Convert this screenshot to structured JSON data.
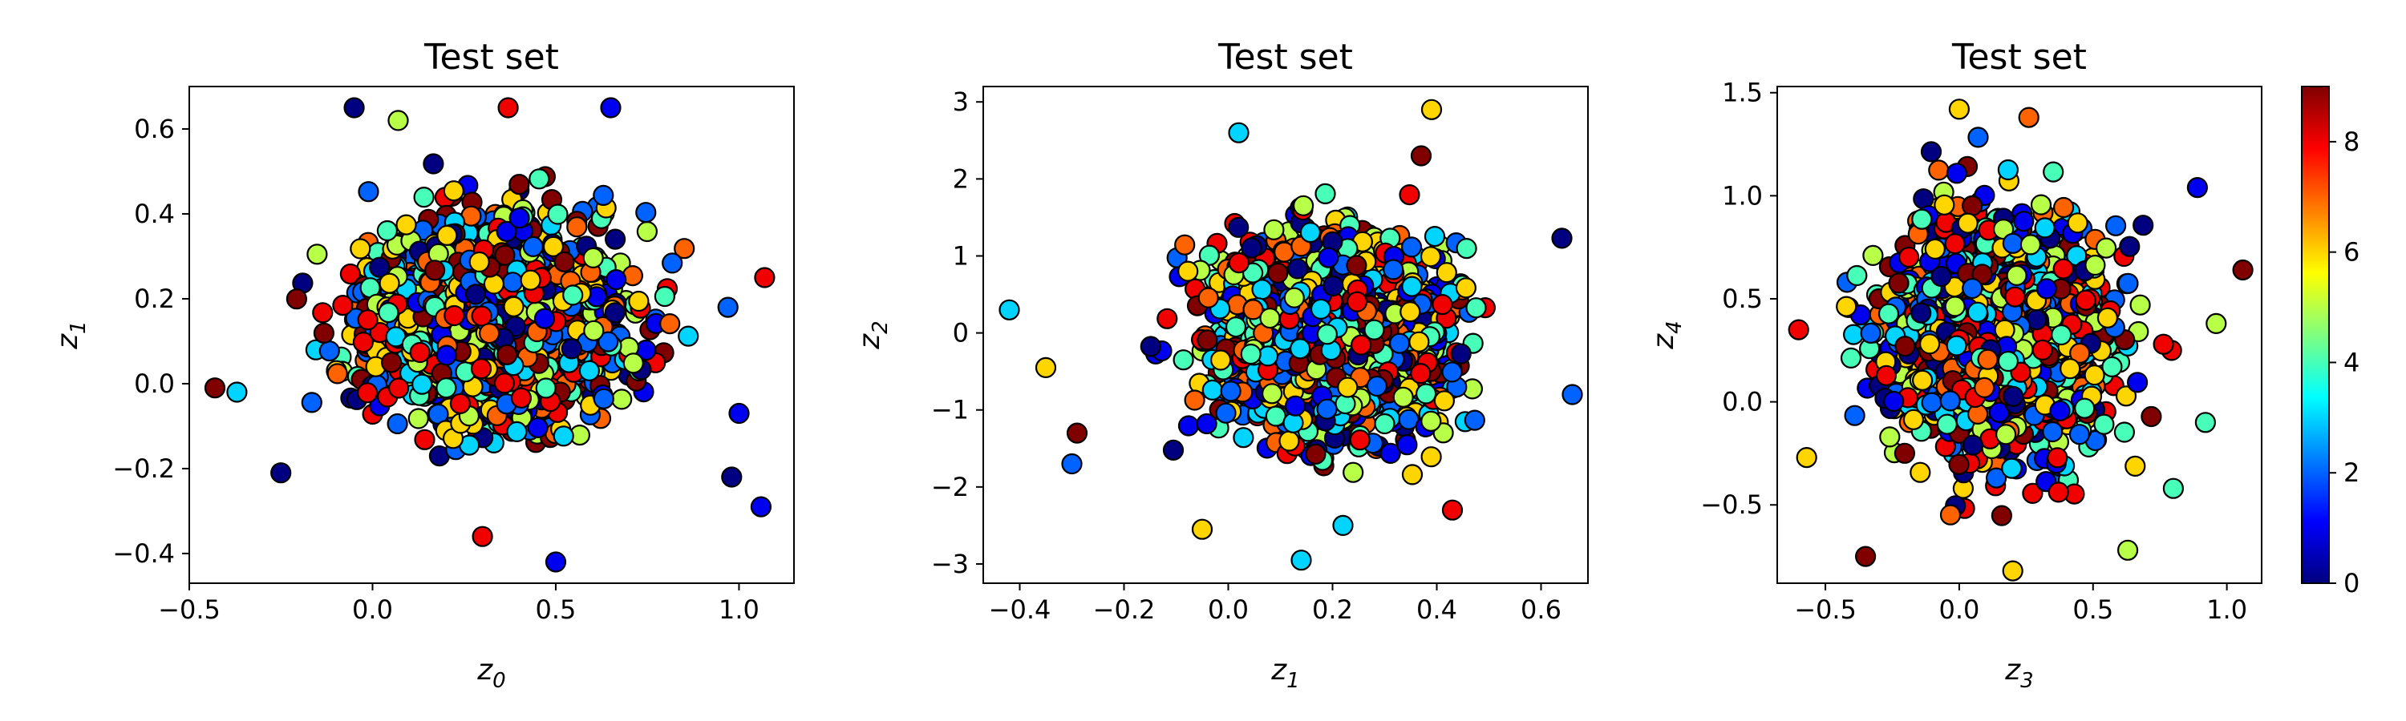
{
  "chart_data": [
    {
      "type": "scatter",
      "title": "Test set",
      "xlabel": {
        "base": "z",
        "sub": "0"
      },
      "ylabel": {
        "base": "z",
        "sub": "1"
      },
      "xlim": [
        -0.5,
        1.15
      ],
      "ylim": [
        -0.47,
        0.7
      ],
      "xticks": [
        "−0.5",
        "0.0",
        "0.5",
        "1.0"
      ],
      "xtick_values": [
        -0.5,
        0.0,
        0.5,
        1.0
      ],
      "yticks": [
        "−0.4",
        "−0.2",
        "0.0",
        "0.2",
        "0.4",
        "0.6"
      ],
      "ytick_values": [
        -0.4,
        -0.2,
        0.0,
        0.2,
        0.4,
        0.6
      ],
      "points": {
        "x_center": 0.33,
        "x_spread": 0.27,
        "y_center": 0.15,
        "y_spread": 0.17,
        "count": 2000
      },
      "outliers": [
        [
          -0.43,
          -0.01
        ],
        [
          -0.37,
          -0.02
        ],
        [
          0.5,
          -0.42
        ],
        [
          0.3,
          -0.36
        ],
        [
          1.07,
          0.25
        ],
        [
          1.06,
          -0.29
        ],
        [
          0.98,
          -0.22
        ],
        [
          1.0,
          -0.07
        ],
        [
          -0.05,
          0.65
        ],
        [
          0.65,
          0.65
        ],
        [
          0.37,
          0.65
        ],
        [
          -0.25,
          -0.21
        ],
        [
          0.07,
          0.62
        ],
        [
          0.97,
          0.18
        ]
      ]
    },
    {
      "type": "scatter",
      "title": "Test set",
      "xlabel": {
        "base": "z",
        "sub": "1"
      },
      "ylabel": {
        "base": "z",
        "sub": "2"
      },
      "xlim": [
        -0.47,
        0.69
      ],
      "ylim": [
        -3.25,
        3.2
      ],
      "xticks": [
        "−0.4",
        "−0.2",
        "0.0",
        "0.2",
        "0.4",
        "0.6"
      ],
      "xtick_values": [
        -0.4,
        -0.2,
        0.0,
        0.2,
        0.4,
        0.6
      ],
      "yticks": [
        "−3",
        "−2",
        "−1",
        "0",
        "1",
        "2",
        "3"
      ],
      "ytick_values": [
        -3,
        -2,
        -1,
        0,
        1,
        2,
        3
      ],
      "points": {
        "x_center": 0.2,
        "x_spread": 0.16,
        "y_center": 0.0,
        "y_spread": 0.95,
        "count": 2000
      },
      "outliers": [
        [
          -0.42,
          0.3
        ],
        [
          0.39,
          2.9
        ],
        [
          -0.35,
          -0.45
        ],
        [
          0.14,
          -2.95
        ],
        [
          0.64,
          1.23
        ],
        [
          0.66,
          -0.8
        ],
        [
          -0.29,
          -1.3
        ],
        [
          0.02,
          2.6
        ],
        [
          -0.3,
          -1.7
        ],
        [
          0.22,
          -2.5
        ],
        [
          0.43,
          -2.3
        ],
        [
          -0.05,
          -2.55
        ],
        [
          0.37,
          2.3
        ]
      ]
    },
    {
      "type": "scatter",
      "title": "Test set",
      "xlabel": {
        "base": "z",
        "sub": "3"
      },
      "ylabel": {
        "base": "z",
        "sub": "4"
      },
      "xlim": [
        -0.68,
        1.13
      ],
      "ylim": [
        -0.88,
        1.53
      ],
      "xticks": [
        "−0.5",
        "0.0",
        "0.5",
        "1.0"
      ],
      "xtick_values": [
        -0.5,
        0.0,
        0.5,
        1.0
      ],
      "yticks": [
        "−0.5",
        "0.0",
        "0.5",
        "1.0",
        "1.5"
      ],
      "ytick_values": [
        -0.5,
        0.0,
        0.5,
        1.0,
        1.5
      ],
      "points": {
        "x_center": 0.15,
        "x_spread": 0.3,
        "y_center": 0.3,
        "y_spread": 0.42,
        "count": 2000
      },
      "outliers": [
        [
          -0.6,
          0.35
        ],
        [
          1.06,
          0.64
        ],
        [
          0.89,
          1.04
        ],
        [
          0.96,
          0.38
        ],
        [
          0.92,
          -0.1
        ],
        [
          -0.35,
          -0.75
        ],
        [
          0.0,
          1.42
        ],
        [
          0.2,
          -0.82
        ],
        [
          0.63,
          -0.72
        ],
        [
          0.8,
          -0.42
        ],
        [
          -0.57,
          -0.27
        ],
        [
          0.26,
          1.38
        ]
      ]
    }
  ],
  "colorbar": {
    "vmin": 0,
    "vmax": 9,
    "colormap": "jet",
    "ticks": [
      "0",
      "2",
      "4",
      "6",
      "8"
    ],
    "tick_values": [
      0,
      2,
      4,
      6,
      8
    ],
    "stops": [
      "#00007f",
      "#0000ff",
      "#007fff",
      "#00ffff",
      "#7fff7f",
      "#ffff00",
      "#ff7f00",
      "#ff0000",
      "#7f0000"
    ]
  }
}
